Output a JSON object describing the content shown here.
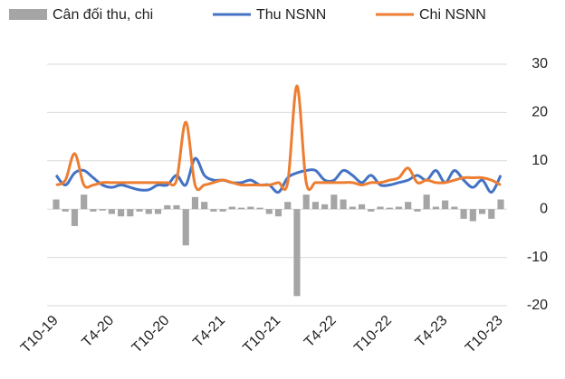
{
  "chart_data": {
    "type": "bar-line",
    "categories": [
      "T10-19",
      null,
      null,
      null,
      null,
      null,
      "T4-20",
      null,
      null,
      null,
      null,
      null,
      "T10-20",
      null,
      null,
      null,
      null,
      null,
      "T4-21",
      null,
      null,
      null,
      null,
      null,
      "T10-21",
      null,
      null,
      null,
      null,
      null,
      "T4-22",
      null,
      null,
      null,
      null,
      null,
      "T10-22",
      null,
      null,
      null,
      null,
      null,
      "T4-23",
      null,
      null,
      null,
      null,
      null,
      "T10-23"
    ],
    "series": [
      {
        "name": "Cân đối thu, chi",
        "type": "bar",
        "color": "#a5a5a5",
        "values": [
          2,
          -0.5,
          -3.5,
          3,
          -0.5,
          -0.3,
          -1,
          -1.5,
          -1.5,
          -0.5,
          -1,
          -1,
          0.8,
          0.8,
          -7.5,
          2.5,
          1.5,
          -0.5,
          -0.5,
          0.5,
          0.3,
          0.5,
          0.3,
          -1,
          -1.5,
          1.5,
          -18,
          3,
          1.5,
          1,
          3,
          2,
          0.5,
          1,
          -0.5,
          0.5,
          0.3,
          0.5,
          1.5,
          -0.5,
          3,
          0.5,
          1.8,
          0.5,
          -2,
          -2.5,
          -1,
          -2,
          2
        ]
      },
      {
        "name": "Thu NSNN",
        "type": "line",
        "color": "#4472c4",
        "values": [
          7,
          5,
          7.5,
          8,
          6.5,
          5,
          4.5,
          5,
          4.5,
          4,
          4,
          5,
          5,
          7,
          5,
          10.5,
          7,
          6,
          6,
          5.5,
          5.5,
          6,
          5,
          5,
          3.5,
          6.5,
          7.5,
          8,
          8,
          6,
          6,
          8,
          7,
          5.5,
          7,
          5,
          5,
          5.5,
          6,
          7,
          6,
          8,
          5.5,
          8,
          6,
          4.5,
          6,
          3.5,
          7
        ]
      },
      {
        "name": "Chi NSNN",
        "type": "line",
        "color": "#ed7d31",
        "values": [
          5,
          6,
          11.5,
          5,
          5,
          5.5,
          5.5,
          5.5,
          5.5,
          5.5,
          5.5,
          5.5,
          5.5,
          6,
          18,
          5,
          5,
          5.5,
          6,
          5.5,
          5,
          5,
          5,
          5,
          5.5,
          5.5,
          25.5,
          5.5,
          5.5,
          5.5,
          5.5,
          5.5,
          5.5,
          5,
          5.5,
          5.5,
          6,
          6.5,
          8.5,
          5.5,
          6,
          5.5,
          5.5,
          6,
          6.5,
          6.5,
          6.5,
          6,
          5
        ]
      }
    ],
    "ylim": [
      -20,
      30
    ],
    "yticks": [
      -20,
      -10,
      0,
      10,
      20,
      30
    ],
    "grid": true,
    "legend": "top"
  }
}
